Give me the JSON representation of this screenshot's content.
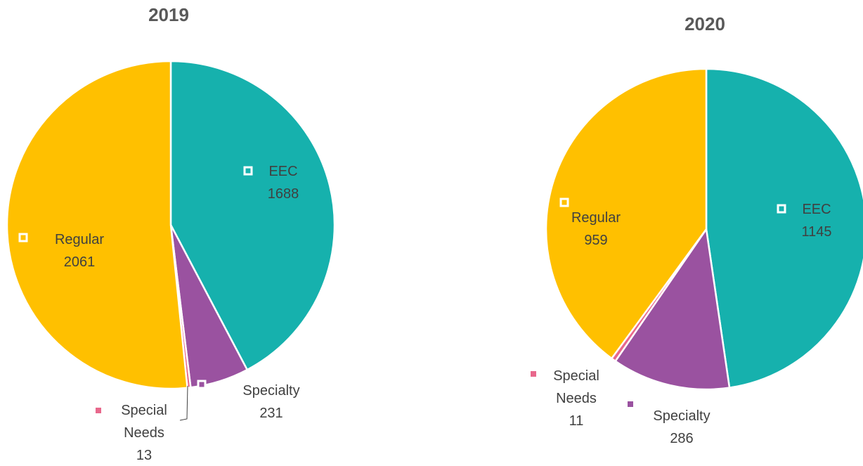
{
  "chart_data": [
    {
      "type": "pie",
      "title": "2019",
      "categories": [
        "EEC",
        "Specialty",
        "Special Needs",
        "Regular"
      ],
      "values": [
        1688,
        231,
        13,
        2061
      ],
      "colors": [
        "#16b1ad",
        "#9a52a0",
        "#e8688c",
        "#ffc000"
      ]
    },
    {
      "type": "pie",
      "title": "2020",
      "categories": [
        "EEC",
        "Specialty",
        "Special Needs",
        "Regular"
      ],
      "values": [
        1145,
        286,
        11,
        959
      ],
      "colors": [
        "#16b1ad",
        "#9a52a0",
        "#e8688c",
        "#ffc000"
      ]
    }
  ]
}
